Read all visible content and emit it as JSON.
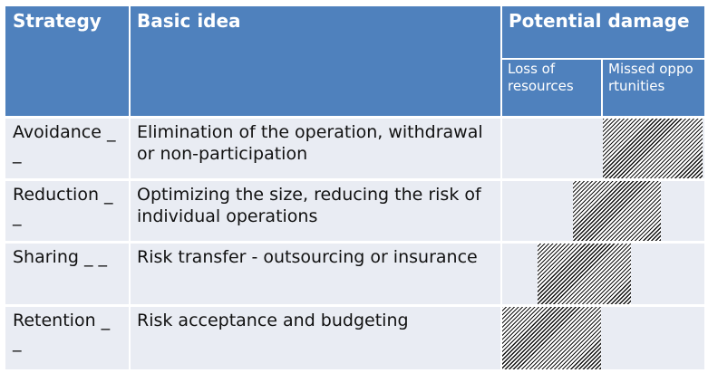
{
  "header": {
    "col1": "Strategy",
    "col2": "Basic idea",
    "col3": "Potential damage",
    "sub1": "Loss of resources",
    "sub2": "Missed opportunities"
  },
  "rows": [
    {
      "strategy": "Avoidance _ _",
      "idea": "Elimination of the operation, withdrawal or non-participation"
    },
    {
      "strategy": "Reduction _ _",
      "idea": "Optimizing the size, reducing the risk of individual operations"
    },
    {
      "strategy": "Sharing _ _",
      "idea": "Risk transfer - outsourcing or insurance"
    },
    {
      "strategy": "Retention _ _",
      "idea": "Risk acceptance and budgeting"
    }
  ]
}
